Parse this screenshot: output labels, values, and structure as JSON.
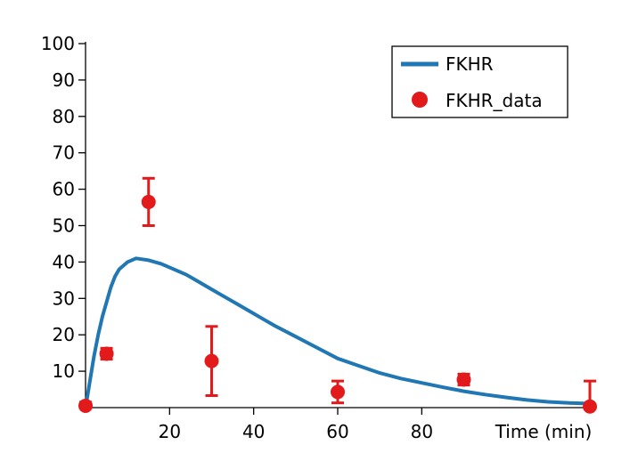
{
  "chart_data": {
    "type": "line",
    "title": "",
    "xlabel": "Time (min)",
    "ylabel": "",
    "xlim": [
      0,
      120
    ],
    "ylim": [
      0,
      100
    ],
    "x_ticks": [
      20,
      40,
      60,
      80
    ],
    "y_ticks": [
      10,
      20,
      30,
      40,
      50,
      60,
      70,
      80,
      90,
      100
    ],
    "grid": false,
    "legend_position": "top-right",
    "series": [
      {
        "name": "FKHR",
        "kind": "line",
        "color": "#2077b4",
        "x": [
          0,
          1,
          2,
          3,
          4,
          5,
          6,
          7,
          8,
          10,
          12,
          15,
          18,
          21,
          24,
          27,
          30,
          33,
          36,
          39,
          42,
          45,
          50,
          55,
          60,
          65,
          70,
          75,
          80,
          85,
          90,
          95,
          100,
          105,
          110,
          115,
          120
        ],
        "values": [
          0,
          7,
          14,
          20,
          25,
          29,
          33,
          36,
          38,
          40,
          41,
          40.5,
          39.5,
          38,
          36.5,
          34.5,
          32.5,
          30.5,
          28.5,
          26.5,
          24.5,
          22.5,
          19.5,
          16.5,
          13.5,
          11.5,
          9.5,
          8,
          6.8,
          5.6,
          4.5,
          3.6,
          2.8,
          2.1,
          1.6,
          1.3,
          1.1
        ]
      },
      {
        "name": "FKHR_data",
        "kind": "scatter",
        "color": "#e31a1c",
        "x": [
          0,
          5,
          15,
          30,
          60,
          90,
          120
        ],
        "values": [
          0.5,
          14.8,
          56.5,
          12.8,
          4.3,
          7.7,
          0.3
        ],
        "error": [
          1,
          1.5,
          6.5,
          9.5,
          3,
          1.5,
          7
        ]
      }
    ]
  }
}
